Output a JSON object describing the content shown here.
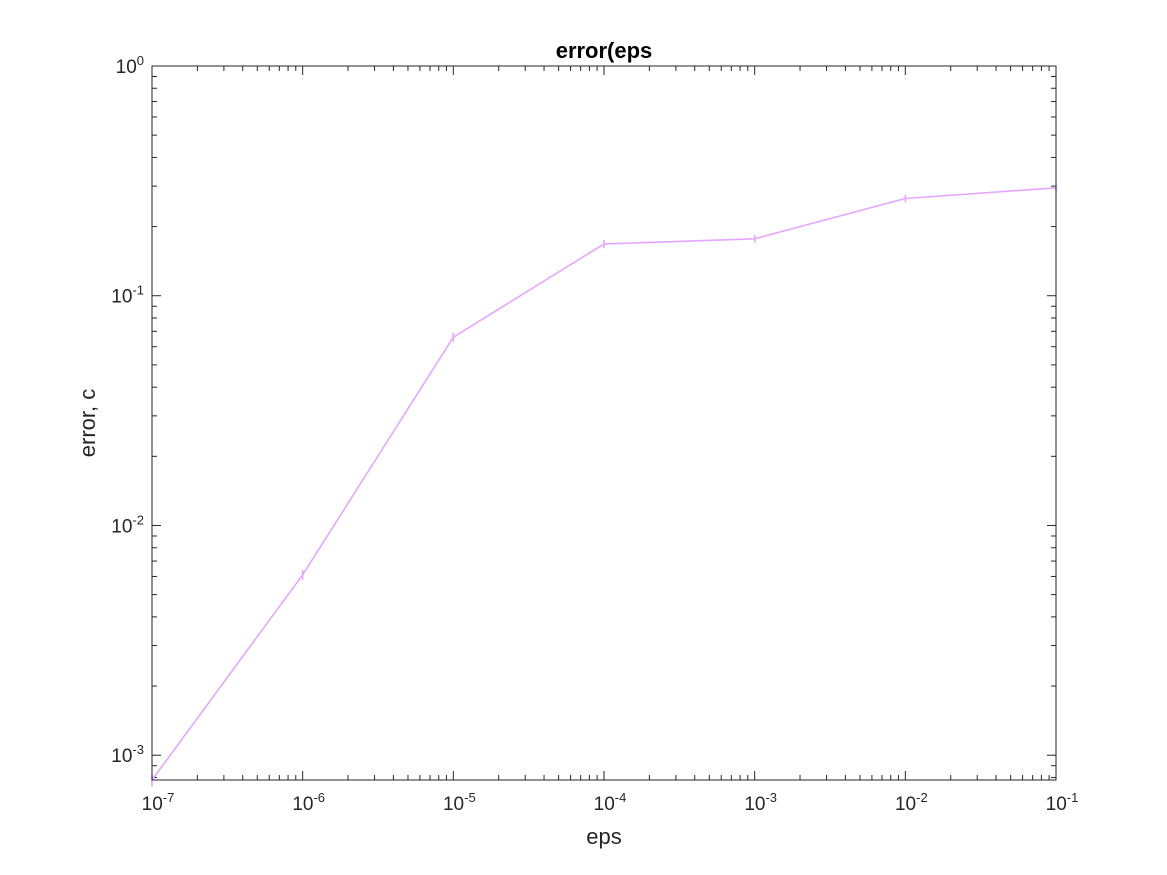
{
  "chart_data": {
    "type": "line",
    "title": "error(eps",
    "xlabel": "eps",
    "ylabel": "error, c",
    "xscale": "log",
    "yscale": "log",
    "xlim": [
      1e-07,
      0.1
    ],
    "ylim": [
      0.00078,
      1
    ],
    "x_ticks": [
      {
        "base": "10",
        "exp": "-7"
      },
      {
        "base": "10",
        "exp": "-6"
      },
      {
        "base": "10",
        "exp": "-5"
      },
      {
        "base": "10",
        "exp": "-4"
      },
      {
        "base": "10",
        "exp": "-3"
      },
      {
        "base": "10",
        "exp": "-2"
      },
      {
        "base": "10",
        "exp": "-1"
      }
    ],
    "y_ticks": [
      {
        "base": "10",
        "exp": "-3"
      },
      {
        "base": "10",
        "exp": "-2"
      },
      {
        "base": "10",
        "exp": "-1"
      },
      {
        "base": "10",
        "exp": "0"
      }
    ],
    "grid": false,
    "legend": null,
    "series": [
      {
        "color": "#e6a6ff",
        "error_bars": true,
        "x": [
          1e-07,
          1e-06,
          1e-05,
          0.0001,
          0.001,
          0.01,
          0.1
        ],
        "y": [
          0.00078,
          0.0061,
          0.066,
          0.168,
          0.177,
          0.265,
          0.295
        ],
        "yerr": [
          5e-05,
          0.0003,
          0.003,
          0.007,
          0.007,
          0.01,
          0.01
        ]
      }
    ]
  }
}
